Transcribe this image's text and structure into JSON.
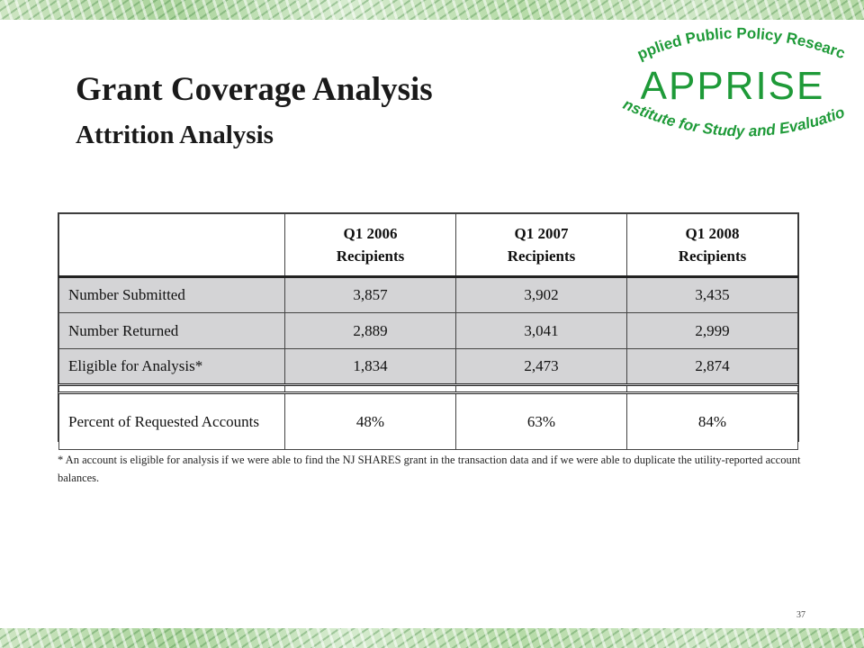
{
  "slide": {
    "title": "Grant Coverage Analysis",
    "subtitle": "Attrition Analysis",
    "page_number": "37"
  },
  "logo": {
    "top_text": "Applied Public Policy Research",
    "main_text": "APPRISE",
    "bottom_text": "Institute for Study and Evaluation",
    "color": "#1e9a38"
  },
  "table": {
    "headers": [
      "",
      [
        "Q1 2006",
        "Recipients"
      ],
      [
        "Q1 2007",
        "Recipients"
      ],
      [
        "Q1 2008",
        "Recipients"
      ]
    ],
    "rows": [
      {
        "label": "Number Submitted",
        "values": [
          "3,857",
          "3,902",
          "3,435"
        ]
      },
      {
        "label": "Number Returned",
        "values": [
          "2,889",
          "3,041",
          "2,999"
        ]
      },
      {
        "label": "Eligible for Analysis*",
        "values": [
          "1,834",
          "2,473",
          "2,874"
        ]
      }
    ],
    "last_row": {
      "label": "Percent of Requested Accounts",
      "values": [
        "48%",
        "63%",
        "84%"
      ]
    },
    "shade_color": "#d4d4d6"
  },
  "footnote": "* An account is eligible for analysis if we were able to find the NJ SHARES grant in the transaction data and if we were able to duplicate the utility-reported account balances."
}
